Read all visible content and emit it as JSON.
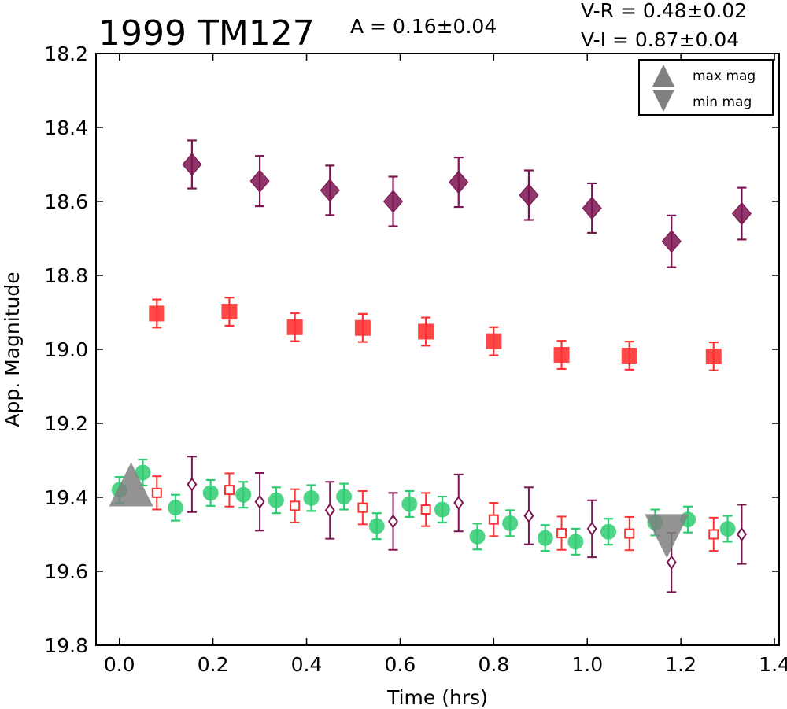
{
  "chart_data": {
    "type": "scatter",
    "title": "1999 TM127",
    "amplitude_text": "A  = 0.16±0.04",
    "color_vr_text": "V-R = 0.48±0.02",
    "color_vi_text": "V-I  = 0.87±0.04",
    "xlabel": "Time (hrs)",
    "ylabel": "App. Magnitude",
    "xlim": [
      -0.05,
      1.41
    ],
    "ylim": [
      19.8,
      18.2
    ],
    "y_inverted": true,
    "xticks": [
      "0.0",
      "0.2",
      "0.4",
      "0.6",
      "0.8",
      "1.0",
      "1.2",
      "1.4"
    ],
    "yticks": [
      "18.2",
      "18.4",
      "18.6",
      "18.8",
      "19.0",
      "19.2",
      "19.4",
      "19.6",
      "19.8"
    ],
    "legend": {
      "position": "top-right",
      "entries": [
        {
          "label": "max mag",
          "marker": "triangle-up",
          "color": "#808080"
        },
        {
          "label": "min mag",
          "marker": "triangle-down",
          "color": "#808080"
        }
      ]
    },
    "series": [
      {
        "marker": "diamond-filled",
        "color": "#7b1450",
        "points": [
          {
            "x": 0.155,
            "y": 18.5,
            "err": 0.065
          },
          {
            "x": 0.3,
            "y": 18.545,
            "err": 0.068
          },
          {
            "x": 0.45,
            "y": 18.57,
            "err": 0.067
          },
          {
            "x": 0.585,
            "y": 18.6,
            "err": 0.067
          },
          {
            "x": 0.725,
            "y": 18.548,
            "err": 0.067
          },
          {
            "x": 0.875,
            "y": 18.583,
            "err": 0.067
          },
          {
            "x": 1.01,
            "y": 18.618,
            "err": 0.067
          },
          {
            "x": 1.18,
            "y": 18.708,
            "err": 0.07
          },
          {
            "x": 1.33,
            "y": 18.633,
            "err": 0.07
          }
        ]
      },
      {
        "marker": "square-filled",
        "color": "#ff3333",
        "points": [
          {
            "x": 0.08,
            "y": 18.903,
            "err": 0.038
          },
          {
            "x": 0.235,
            "y": 18.898,
            "err": 0.038
          },
          {
            "x": 0.375,
            "y": 18.94,
            "err": 0.038
          },
          {
            "x": 0.52,
            "y": 18.942,
            "err": 0.038
          },
          {
            "x": 0.655,
            "y": 18.952,
            "err": 0.038
          },
          {
            "x": 0.8,
            "y": 18.978,
            "err": 0.038
          },
          {
            "x": 0.945,
            "y": 19.015,
            "err": 0.038
          },
          {
            "x": 1.09,
            "y": 19.017,
            "err": 0.038
          },
          {
            "x": 1.27,
            "y": 19.019,
            "err": 0.038
          }
        ]
      },
      {
        "marker": "circle-filled",
        "color": "#2ecc71",
        "points": [
          {
            "x": 0.0,
            "y": 19.38,
            "err": 0.035
          },
          {
            "x": 0.05,
            "y": 19.333,
            "err": 0.035
          },
          {
            "x": 0.12,
            "y": 19.428,
            "err": 0.035
          },
          {
            "x": 0.195,
            "y": 19.388,
            "err": 0.035
          },
          {
            "x": 0.265,
            "y": 19.393,
            "err": 0.035
          },
          {
            "x": 0.335,
            "y": 19.408,
            "err": 0.035
          },
          {
            "x": 0.41,
            "y": 19.402,
            "err": 0.035
          },
          {
            "x": 0.48,
            "y": 19.398,
            "err": 0.035
          },
          {
            "x": 0.55,
            "y": 19.478,
            "err": 0.035
          },
          {
            "x": 0.62,
            "y": 19.418,
            "err": 0.035
          },
          {
            "x": 0.69,
            "y": 19.433,
            "err": 0.035
          },
          {
            "x": 0.765,
            "y": 19.506,
            "err": 0.035
          },
          {
            "x": 0.835,
            "y": 19.47,
            "err": 0.035
          },
          {
            "x": 0.91,
            "y": 19.51,
            "err": 0.035
          },
          {
            "x": 0.975,
            "y": 19.52,
            "err": 0.035
          },
          {
            "x": 1.045,
            "y": 19.493,
            "err": 0.035
          },
          {
            "x": 1.145,
            "y": 19.468,
            "err": 0.035
          },
          {
            "x": 1.215,
            "y": 19.46,
            "err": 0.035
          },
          {
            "x": 1.3,
            "y": 19.485,
            "err": 0.035
          }
        ]
      },
      {
        "marker": "square-open",
        "color": "#ff3333",
        "points": [
          {
            "x": 0.08,
            "y": 19.388,
            "err": 0.045
          },
          {
            "x": 0.235,
            "y": 19.38,
            "err": 0.045
          },
          {
            "x": 0.375,
            "y": 19.423,
            "err": 0.045
          },
          {
            "x": 0.52,
            "y": 19.428,
            "err": 0.045
          },
          {
            "x": 0.655,
            "y": 19.433,
            "err": 0.045
          },
          {
            "x": 0.8,
            "y": 19.46,
            "err": 0.045
          },
          {
            "x": 0.945,
            "y": 19.497,
            "err": 0.045
          },
          {
            "x": 1.09,
            "y": 19.498,
            "err": 0.045
          },
          {
            "x": 1.27,
            "y": 19.5,
            "err": 0.045
          }
        ]
      },
      {
        "marker": "diamond-open",
        "color": "#7b1450",
        "points": [
          {
            "x": 0.155,
            "y": 19.365,
            "err": 0.075
          },
          {
            "x": 0.3,
            "y": 19.412,
            "err": 0.078
          },
          {
            "x": 0.45,
            "y": 19.435,
            "err": 0.077
          },
          {
            "x": 0.585,
            "y": 19.465,
            "err": 0.077
          },
          {
            "x": 0.725,
            "y": 19.415,
            "err": 0.077
          },
          {
            "x": 0.875,
            "y": 19.45,
            "err": 0.077
          },
          {
            "x": 1.01,
            "y": 19.485,
            "err": 0.077
          },
          {
            "x": 1.18,
            "y": 19.576,
            "err": 0.08
          },
          {
            "x": 1.33,
            "y": 19.5,
            "err": 0.08
          }
        ]
      }
    ],
    "extrema": [
      {
        "label": "max mag",
        "marker": "triangle-up",
        "color": "#808080",
        "x": 0.025,
        "y": 19.365
      },
      {
        "label": "min mag",
        "marker": "triangle-down",
        "color": "#808080",
        "x": 1.17,
        "y": 19.505
      }
    ]
  }
}
